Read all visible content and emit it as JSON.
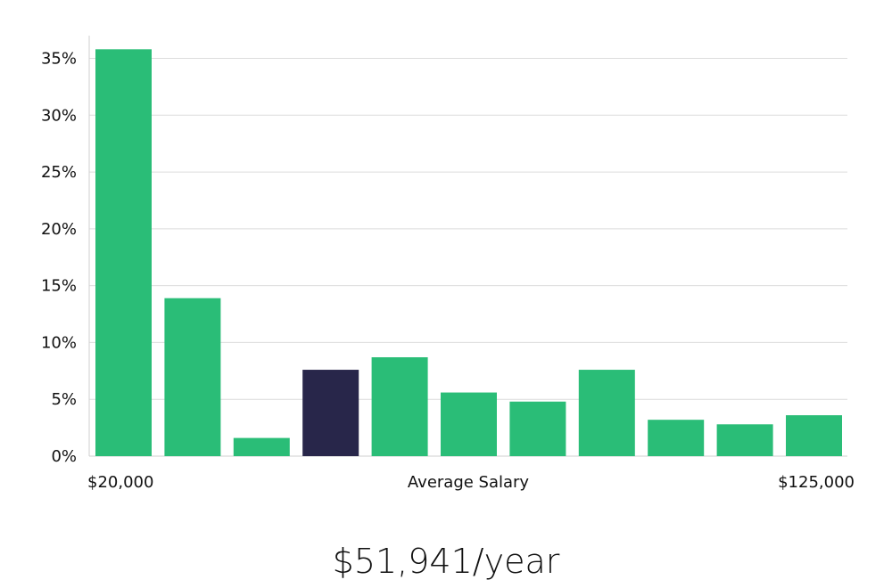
{
  "headline": "$51,941/year",
  "chart_data": {
    "type": "bar",
    "title": "",
    "xlabel": "Average Salary",
    "ylabel": "",
    "x_start_label": "$20,000",
    "x_end_label": "$125,000",
    "yticks": [
      "0%",
      "5%",
      "10%",
      "15%",
      "20%",
      "25%",
      "30%",
      "35%"
    ],
    "ylim": [
      0,
      37
    ],
    "grid": true,
    "colors": {
      "default": "#2abd77",
      "highlight": "#28264a"
    },
    "highlight_index": 3,
    "values": [
      35.8,
      13.9,
      1.6,
      7.6,
      8.7,
      5.6,
      4.8,
      7.6,
      3.2,
      2.8,
      3.6
    ]
  }
}
